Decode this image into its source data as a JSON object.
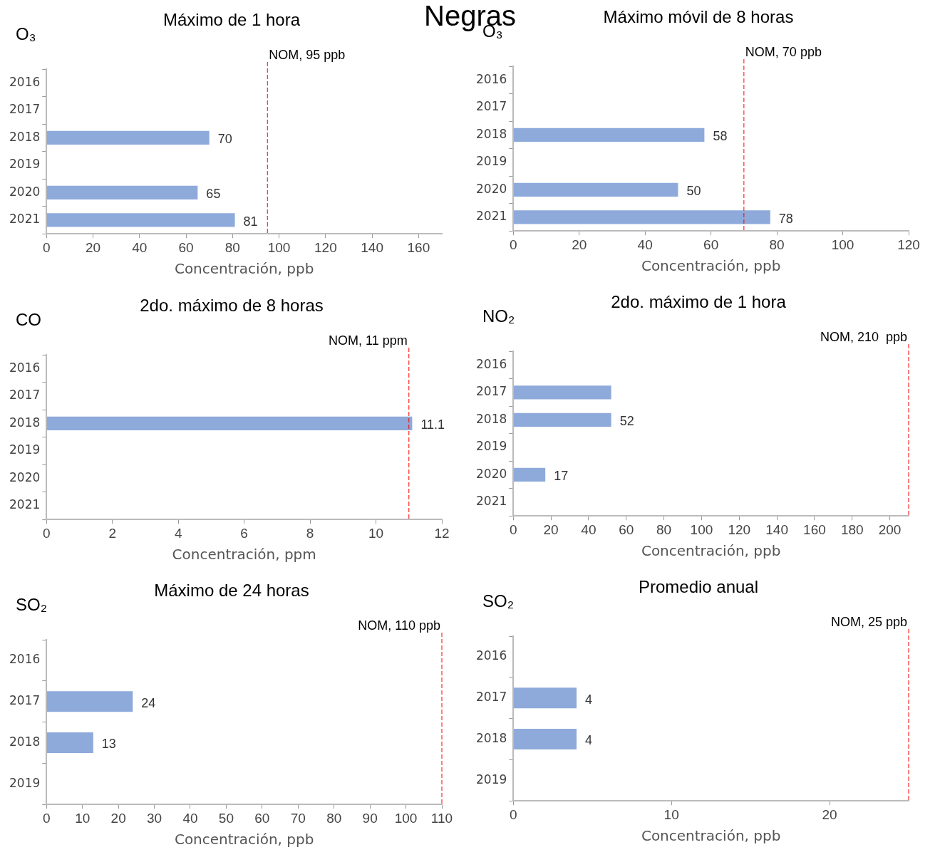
{
  "chart_data": [
    {
      "type": "bar",
      "orientation": "horizontal",
      "title": "Máximo de 1 hora",
      "ylabel": "O₃",
      "xlabel": "Concentración, ppb",
      "annotations": [
        "Negras"
      ],
      "categories": [
        "2016",
        "2017",
        "2018",
        "2019",
        "2020",
        "2021"
      ],
      "values": [
        null,
        null,
        70,
        null,
        65,
        81
      ],
      "color": "#8eaadb",
      "xlim": [
        0,
        170
      ],
      "xticks": [
        0,
        20,
        40,
        60,
        80,
        100,
        120,
        140,
        160
      ],
      "data_labels": true,
      "ref_lines": [
        {
          "axis": "x",
          "value": 95,
          "label": "NOM, 95 ppb",
          "color": "#ff0000",
          "line_style": "dashed"
        }
      ]
    },
    {
      "type": "bar",
      "orientation": "horizontal",
      "title": "Máximo móvil de 8 horas",
      "ylabel": "O₃",
      "xlabel": "Concentración, ppb",
      "categories": [
        "2016",
        "2017",
        "2018",
        "2019",
        "2020",
        "2021"
      ],
      "values": [
        null,
        null,
        58,
        null,
        50,
        78
      ],
      "color": "#8eaadb",
      "xlim": [
        0,
        120
      ],
      "xticks": [
        0,
        20,
        40,
        60,
        80,
        100,
        120
      ],
      "data_labels": true,
      "ref_lines": [
        {
          "axis": "x",
          "value": 70,
          "label": "NOM, 70 ppb",
          "color": "#ff0000",
          "line_style": "dashed"
        }
      ]
    },
    {
      "type": "bar",
      "orientation": "horizontal",
      "title": "2do. máximo de 8 horas",
      "ylabel": "CO",
      "xlabel": "Concentración, ppm",
      "categories": [
        "2016",
        "2017",
        "2018",
        "2019",
        "2020",
        "2021"
      ],
      "values": [
        null,
        null,
        11.1,
        null,
        null,
        null
      ],
      "color": "#8eaadb",
      "xlim": [
        0,
        12
      ],
      "xticks": [
        0,
        2,
        4,
        6,
        8,
        10,
        12
      ],
      "data_labels": true,
      "ref_lines": [
        {
          "axis": "x",
          "value": 11,
          "label": "NOM, 11 ppm",
          "color": "#ff0000",
          "line_style": "dashed"
        }
      ]
    },
    {
      "type": "bar",
      "orientation": "horizontal",
      "title": "2do. máximo de 1 hora",
      "ylabel": "NO₂",
      "xlabel": "Concentración, ppb",
      "categories": [
        "2016",
        "2017",
        "2018",
        "2019",
        "2020",
        "2021"
      ],
      "values": [
        null,
        52,
        52,
        null,
        17,
        null
      ],
      "value_labels": [
        null,
        null,
        "52",
        null,
        "17",
        null
      ],
      "color": "#8eaadb",
      "xlim": [
        0,
        210
      ],
      "xticks": [
        0,
        20,
        40,
        60,
        80,
        100,
        120,
        140,
        160,
        180,
        200
      ],
      "ref_lines": [
        {
          "axis": "x",
          "value": 210,
          "label": "NOM, 210  ppb",
          "color": "#ff0000",
          "line_style": "dashed"
        }
      ]
    },
    {
      "type": "bar",
      "orientation": "horizontal",
      "title": "Máximo de 24 horas",
      "ylabel": "SO₂",
      "xlabel": "Concentración, ppb",
      "categories": [
        "2016",
        "2017",
        "2018",
        "2019"
      ],
      "values": [
        null,
        24,
        13,
        null
      ],
      "color": "#8eaadb",
      "xlim": [
        0,
        110
      ],
      "xticks": [
        0,
        10,
        20,
        30,
        40,
        50,
        60,
        70,
        80,
        90,
        100,
        110
      ],
      "data_labels": true,
      "ref_lines": [
        {
          "axis": "x",
          "value": 110,
          "label": "NOM, 110 ppb",
          "color": "#ff0000",
          "line_style": "dashed"
        }
      ]
    },
    {
      "type": "bar",
      "orientation": "horizontal",
      "title": "Promedio anual",
      "ylabel": "SO₂",
      "xlabel": "Concentración, ppb",
      "categories": [
        "2016",
        "2017",
        "2018",
        "2019"
      ],
      "values": [
        null,
        4,
        4,
        null
      ],
      "color": "#8eaadb",
      "xlim": [
        0,
        25
      ],
      "xticks": [
        0,
        10,
        20
      ],
      "data_labels": true,
      "ref_lines": [
        {
          "axis": "x",
          "value": 25,
          "label": "NOM, 25 ppb",
          "color": "#ff0000",
          "line_style": "dashed"
        }
      ]
    }
  ]
}
